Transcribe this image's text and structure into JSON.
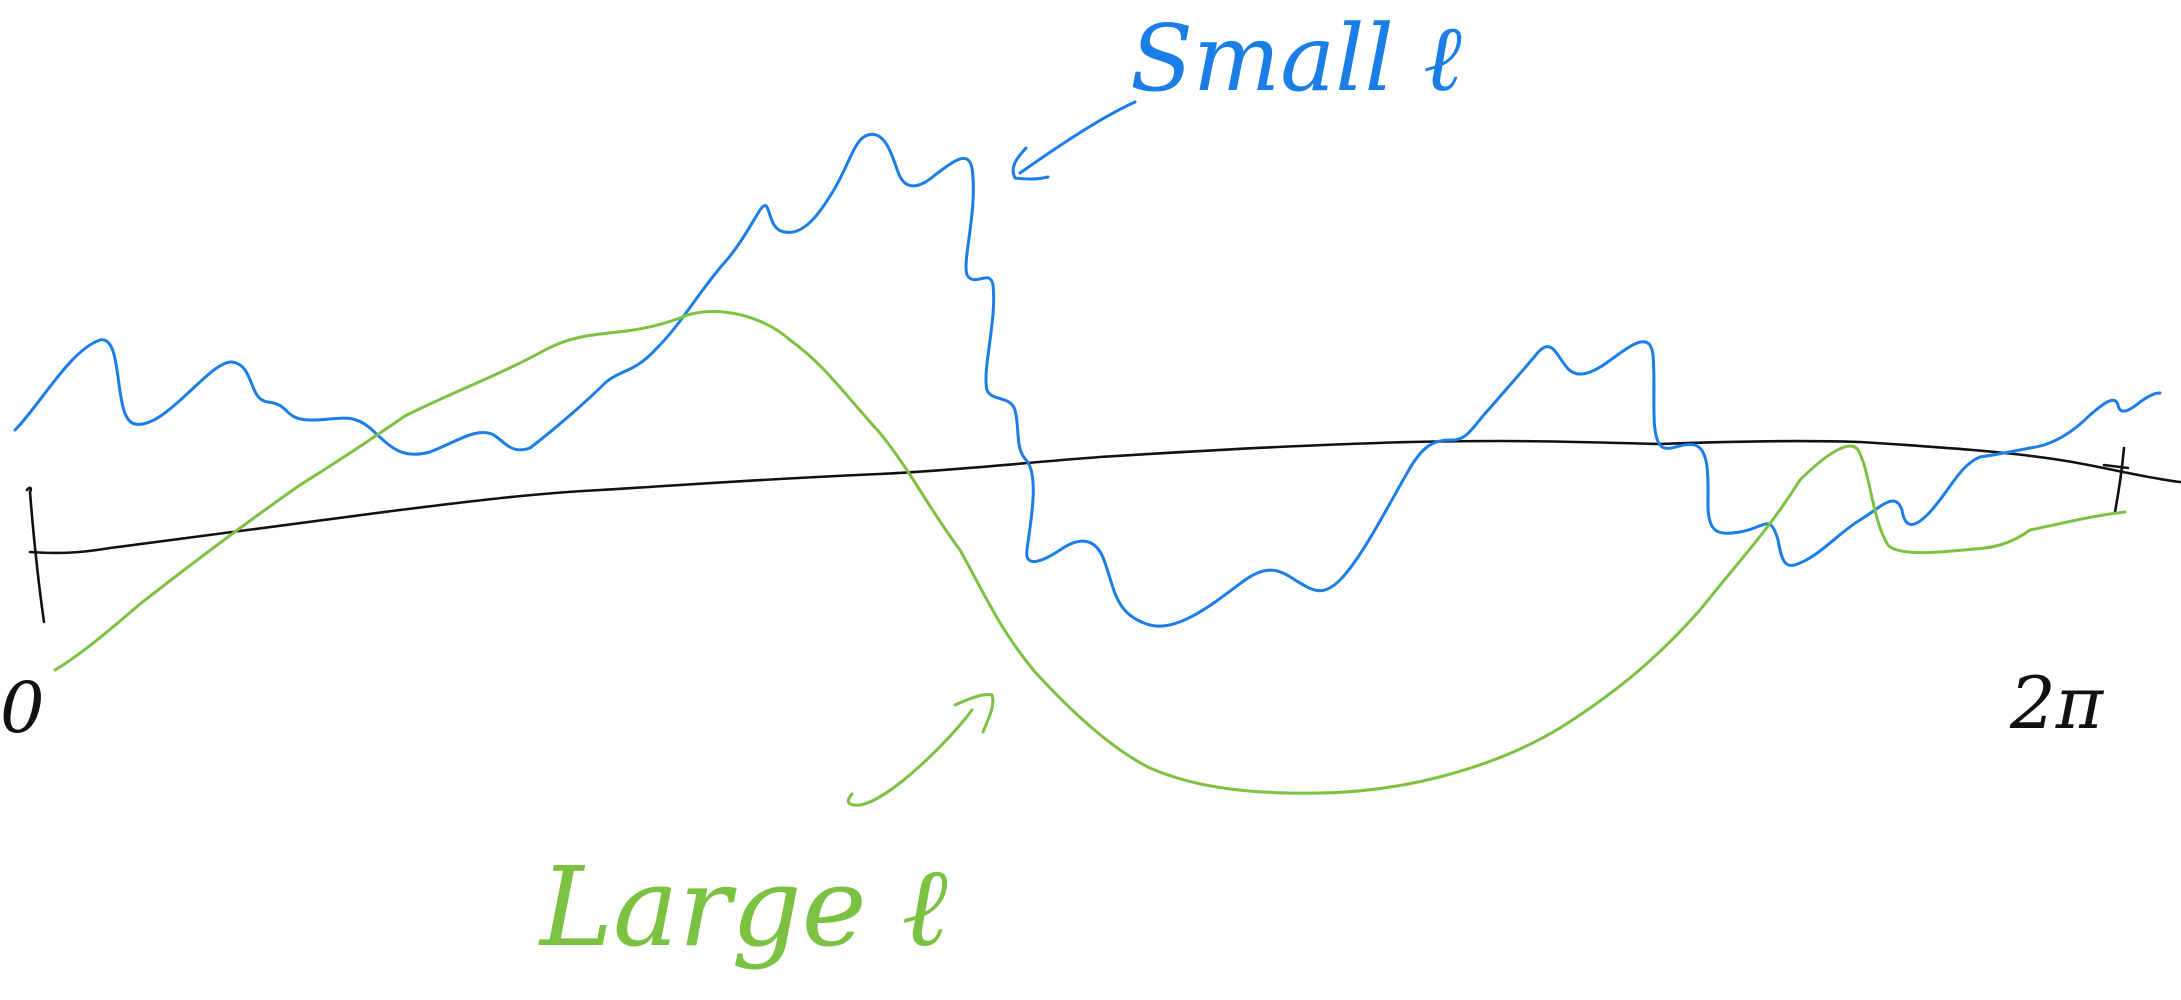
{
  "labels": {
    "start": "0",
    "end": "2π",
    "small": "Small ℓ",
    "large": "Large ℓ"
  },
  "colors": {
    "axis": "#111111",
    "small": "#1a7ee6",
    "large": "#7cc242"
  }
}
